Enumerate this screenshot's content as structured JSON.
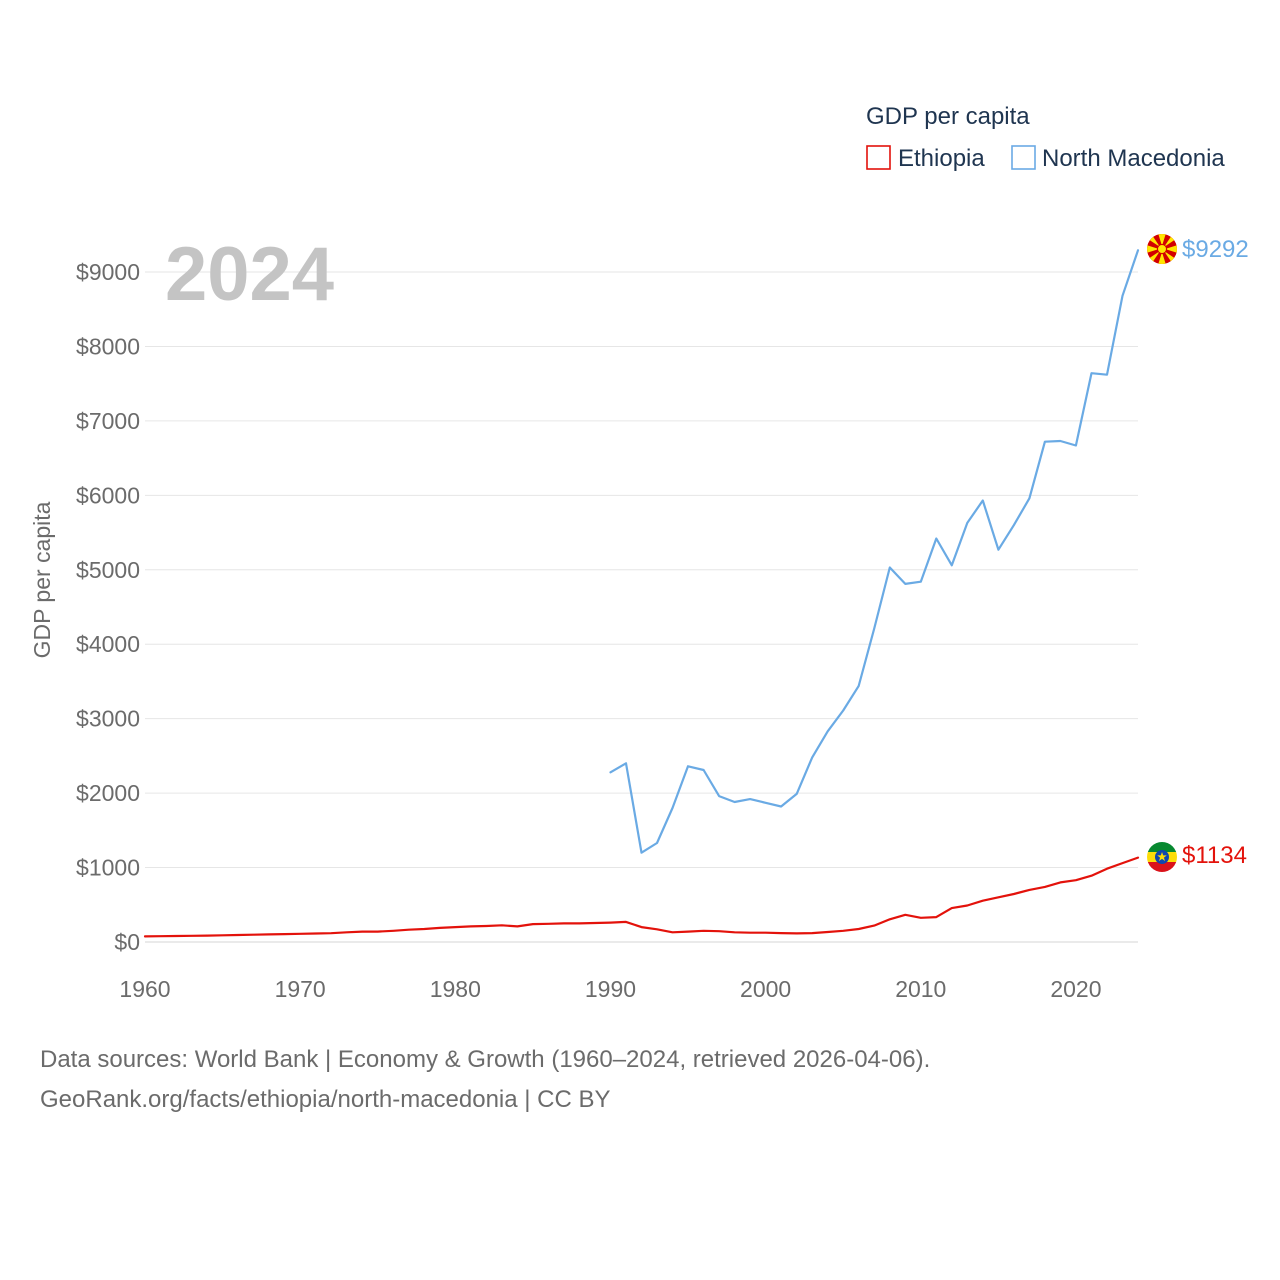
{
  "chart_data": {
    "type": "line",
    "year_label": "2024",
    "legend_title": "GDP per capita",
    "ylabel": "GDP per capita",
    "xlim": [
      1960,
      2024
    ],
    "ylim": [
      0,
      9000
    ],
    "x_ticks": [
      1960,
      1970,
      1980,
      1990,
      2000,
      2010,
      2020
    ],
    "x_tick_labels": [
      "1960",
      "1970",
      "1980",
      "1990",
      "2000",
      "2010",
      "2020"
    ],
    "y_ticks": [
      0,
      1000,
      2000,
      3000,
      4000,
      5000,
      6000,
      7000,
      8000,
      9000
    ],
    "y_tick_labels": [
      "$0",
      "$1000",
      "$2000",
      "$3000",
      "$4000",
      "$5000",
      "$6000",
      "$7000",
      "$8000",
      "$9000"
    ],
    "series": [
      {
        "name": "Ethiopia",
        "color": "#e3120b",
        "flag": "ethiopia-flag",
        "end_label": "$1134",
        "x": [
          1960,
          1961,
          1962,
          1963,
          1964,
          1965,
          1966,
          1967,
          1968,
          1969,
          1970,
          1971,
          1972,
          1973,
          1974,
          1975,
          1976,
          1977,
          1978,
          1979,
          1980,
          1981,
          1982,
          1983,
          1984,
          1985,
          1986,
          1987,
          1988,
          1989,
          1990,
          1991,
          1992,
          1993,
          1994,
          1995,
          1996,
          1997,
          1998,
          1999,
          2000,
          2001,
          2002,
          2003,
          2004,
          2005,
          2006,
          2007,
          2008,
          2009,
          2010,
          2011,
          2012,
          2013,
          2014,
          2015,
          2016,
          2017,
          2018,
          2019,
          2020,
          2021,
          2022,
          2023,
          2024
        ],
        "values": [
          75,
          78,
          80,
          83,
          86,
          90,
          94,
          98,
          102,
          106,
          110,
          114,
          118,
          130,
          140,
          140,
          150,
          165,
          175,
          190,
          200,
          210,
          215,
          225,
          210,
          240,
          245,
          250,
          250,
          255,
          260,
          270,
          200,
          170,
          130,
          140,
          150,
          145,
          130,
          125,
          125,
          120,
          115,
          120,
          135,
          150,
          175,
          220,
          305,
          365,
          325,
          335,
          455,
          490,
          555,
          600,
          645,
          700,
          740,
          800,
          830,
          890,
          985,
          1060,
          1134
        ]
      },
      {
        "name": "North Macedonia",
        "color": "#6aaae4",
        "flag": "north-macedonia-flag",
        "end_label": "$9292",
        "x": [
          1990,
          1991,
          1992,
          1993,
          1994,
          1995,
          1996,
          1997,
          1998,
          1999,
          2000,
          2001,
          2002,
          2003,
          2004,
          2005,
          2006,
          2007,
          2008,
          2009,
          2010,
          2011,
          2012,
          2013,
          2014,
          2015,
          2016,
          2017,
          2018,
          2019,
          2020,
          2021,
          2022,
          2023,
          2024
        ],
        "values": [
          2280,
          2400,
          1200,
          1330,
          1800,
          2360,
          2310,
          1960,
          1880,
          1920,
          1870,
          1820,
          1990,
          2480,
          2830,
          3110,
          3440,
          4210,
          5030,
          4810,
          4840,
          5420,
          5060,
          5630,
          5930,
          5270,
          5600,
          5960,
          6720,
          6730,
          6670,
          7640,
          7620,
          8680,
          9292
        ]
      }
    ]
  },
  "source_line1": "Data sources: World Bank | Economy & Growth (1960–2024, retrieved 2026-04-06).",
  "source_line2": "GeoRank.org/facts/ethiopia/north-macedonia | CC BY"
}
